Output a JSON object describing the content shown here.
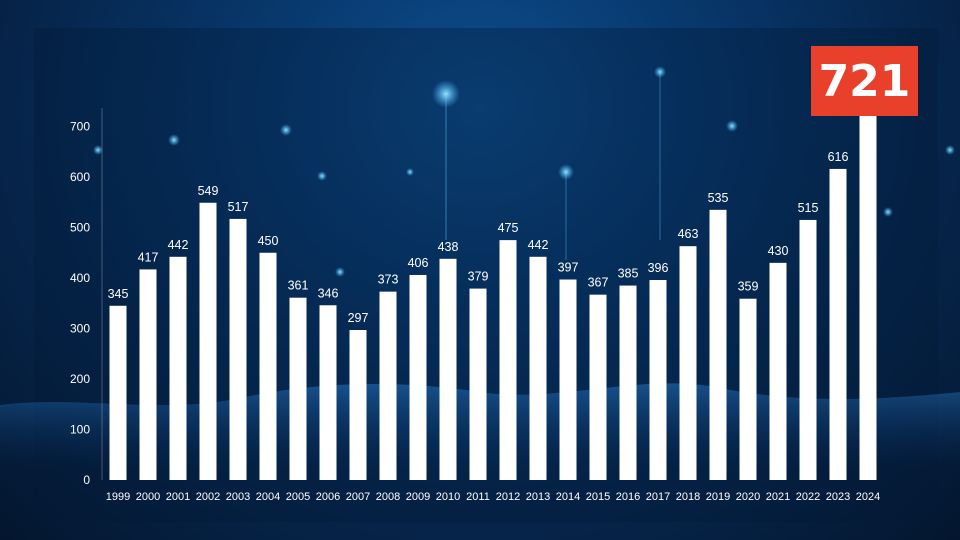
{
  "chart_data": {
    "type": "bar",
    "categories": [
      "1999",
      "2000",
      "2001",
      "2002",
      "2003",
      "2004",
      "2005",
      "2006",
      "2007",
      "2008",
      "2009",
      "2010",
      "2011",
      "2012",
      "2013",
      "2014",
      "2015",
      "2016",
      "2017",
      "2018",
      "2019",
      "2020",
      "2021",
      "2022",
      "2023",
      "2024"
    ],
    "values": [
      345,
      417,
      442,
      549,
      517,
      450,
      361,
      346,
      297,
      373,
      406,
      438,
      379,
      475,
      442,
      397,
      367,
      385,
      396,
      463,
      535,
      359,
      430,
      515,
      616,
      721
    ],
    "yticks": [
      0,
      100,
      200,
      300,
      400,
      500,
      600,
      700
    ],
    "ylim": [
      0,
      700
    ],
    "title": "",
    "xlabel": "",
    "ylabel": "",
    "bar_color": "#ffffff",
    "grid": false,
    "highlight": {
      "label": "721",
      "color": "#e8402a"
    }
  }
}
